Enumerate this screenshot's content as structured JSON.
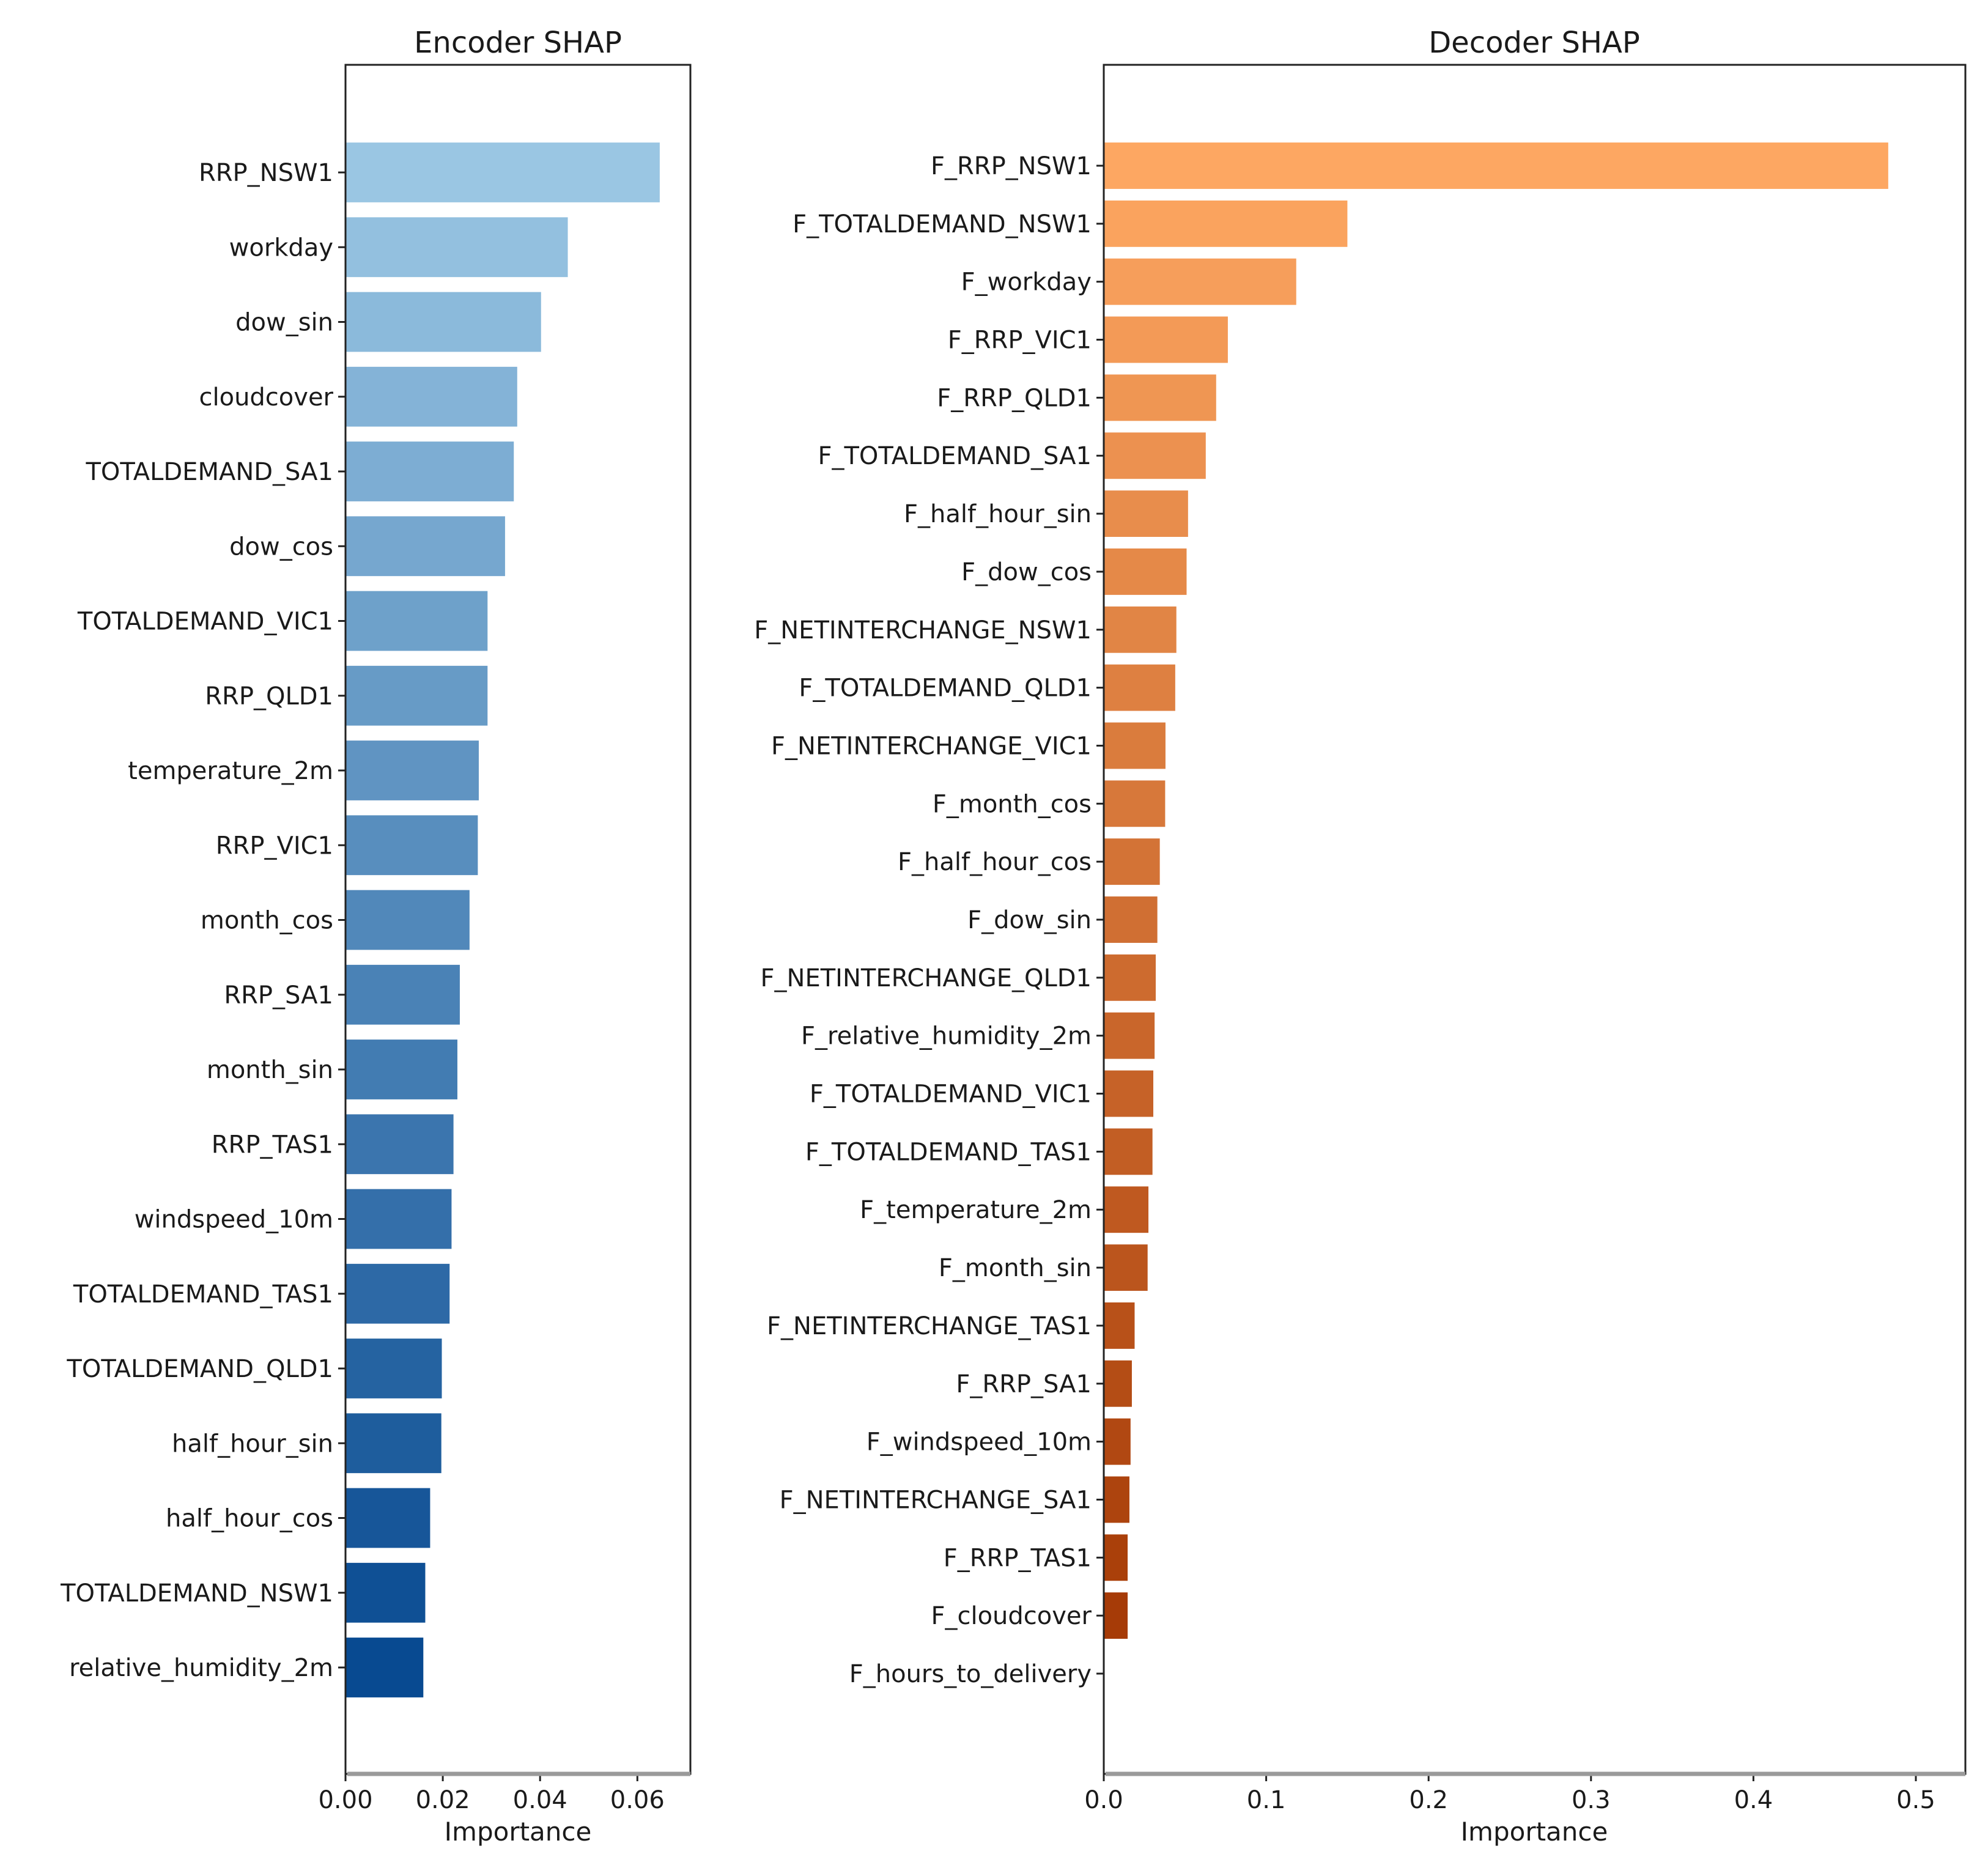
{
  "chart_data": [
    {
      "type": "bar",
      "orientation": "horizontal",
      "title": "Encoder SHAP",
      "xlabel": "Importance",
      "ylabel": "",
      "xlim": [
        0,
        0.0709
      ],
      "xticks": [
        0.0,
        0.02,
        0.04,
        0.06
      ],
      "xtick_labels": [
        "0.00",
        "0.02",
        "0.04",
        "0.06"
      ],
      "grid": false,
      "legend": null,
      "colormap": "Blues",
      "color_start": "#9ac6e3",
      "color_end": "#084a91",
      "categories": [
        "RRP_NSW1",
        "workday",
        "dow_sin",
        "cloudcover",
        "TOTALDEMAND_SA1",
        "dow_cos",
        "TOTALDEMAND_VIC1",
        "RRP_QLD1",
        "temperature_2m",
        "RRP_VIC1",
        "month_cos",
        "RRP_SA1",
        "month_sin",
        "RRP_TAS1",
        "windspeed_10m",
        "TOTALDEMAND_TAS1",
        "TOTALDEMAND_QLD1",
        "half_hour_sin",
        "half_hour_cos",
        "TOTALDEMAND_NSW1",
        "relative_humidity_2m"
      ],
      "values": [
        0.0646,
        0.0457,
        0.0402,
        0.0353,
        0.0346,
        0.0328,
        0.0292,
        0.0292,
        0.0274,
        0.0272,
        0.0255,
        0.0235,
        0.023,
        0.0222,
        0.0218,
        0.0214,
        0.0198,
        0.0197,
        0.0174,
        0.0164,
        0.016
      ]
    },
    {
      "type": "bar",
      "orientation": "horizontal",
      "title": "Decoder SHAP",
      "xlabel": "Importance",
      "ylabel": "",
      "xlim": [
        0,
        0.5305
      ],
      "xticks": [
        0.0,
        0.1,
        0.2,
        0.3,
        0.4,
        0.5
      ],
      "xtick_labels": [
        "0.0",
        "0.1",
        "0.2",
        "0.3",
        "0.4",
        "0.5"
      ],
      "grid": false,
      "legend": null,
      "colormap": "Oranges",
      "color_start": "#fda762",
      "color_end": "#a33703",
      "categories": [
        "F_RRP_NSW1",
        "F_TOTALDEMAND_NSW1",
        "F_workday",
        "F_RRP_VIC1",
        "F_RRP_QLD1",
        "F_TOTALDEMAND_SA1",
        "F_half_hour_sin",
        "F_dow_cos",
        "F_NETINTERCHANGE_NSW1",
        "F_TOTALDEMAND_QLD1",
        "F_NETINTERCHANGE_VIC1",
        "F_month_cos",
        "F_half_hour_cos",
        "F_dow_sin",
        "F_NETINTERCHANGE_QLD1",
        "F_relative_humidity_2m",
        "F_TOTALDEMAND_VIC1",
        "F_TOTALDEMAND_TAS1",
        "F_temperature_2m",
        "F_month_sin",
        "F_NETINTERCHANGE_TAS1",
        "F_RRP_SA1",
        "F_windspeed_10m",
        "F_NETINTERCHANGE_SA1",
        "F_RRP_TAS1",
        "F_cloudcover",
        "F_hours_to_delivery"
      ],
      "values": [
        0.483,
        0.15,
        0.1185,
        0.0764,
        0.0692,
        0.0628,
        0.0519,
        0.051,
        0.0447,
        0.044,
        0.038,
        0.0378,
        0.0345,
        0.033,
        0.032,
        0.0313,
        0.0305,
        0.03,
        0.0275,
        0.027,
        0.019,
        0.0173,
        0.0165,
        0.0158,
        0.0147,
        0.0147,
        0.0
      ]
    }
  ]
}
